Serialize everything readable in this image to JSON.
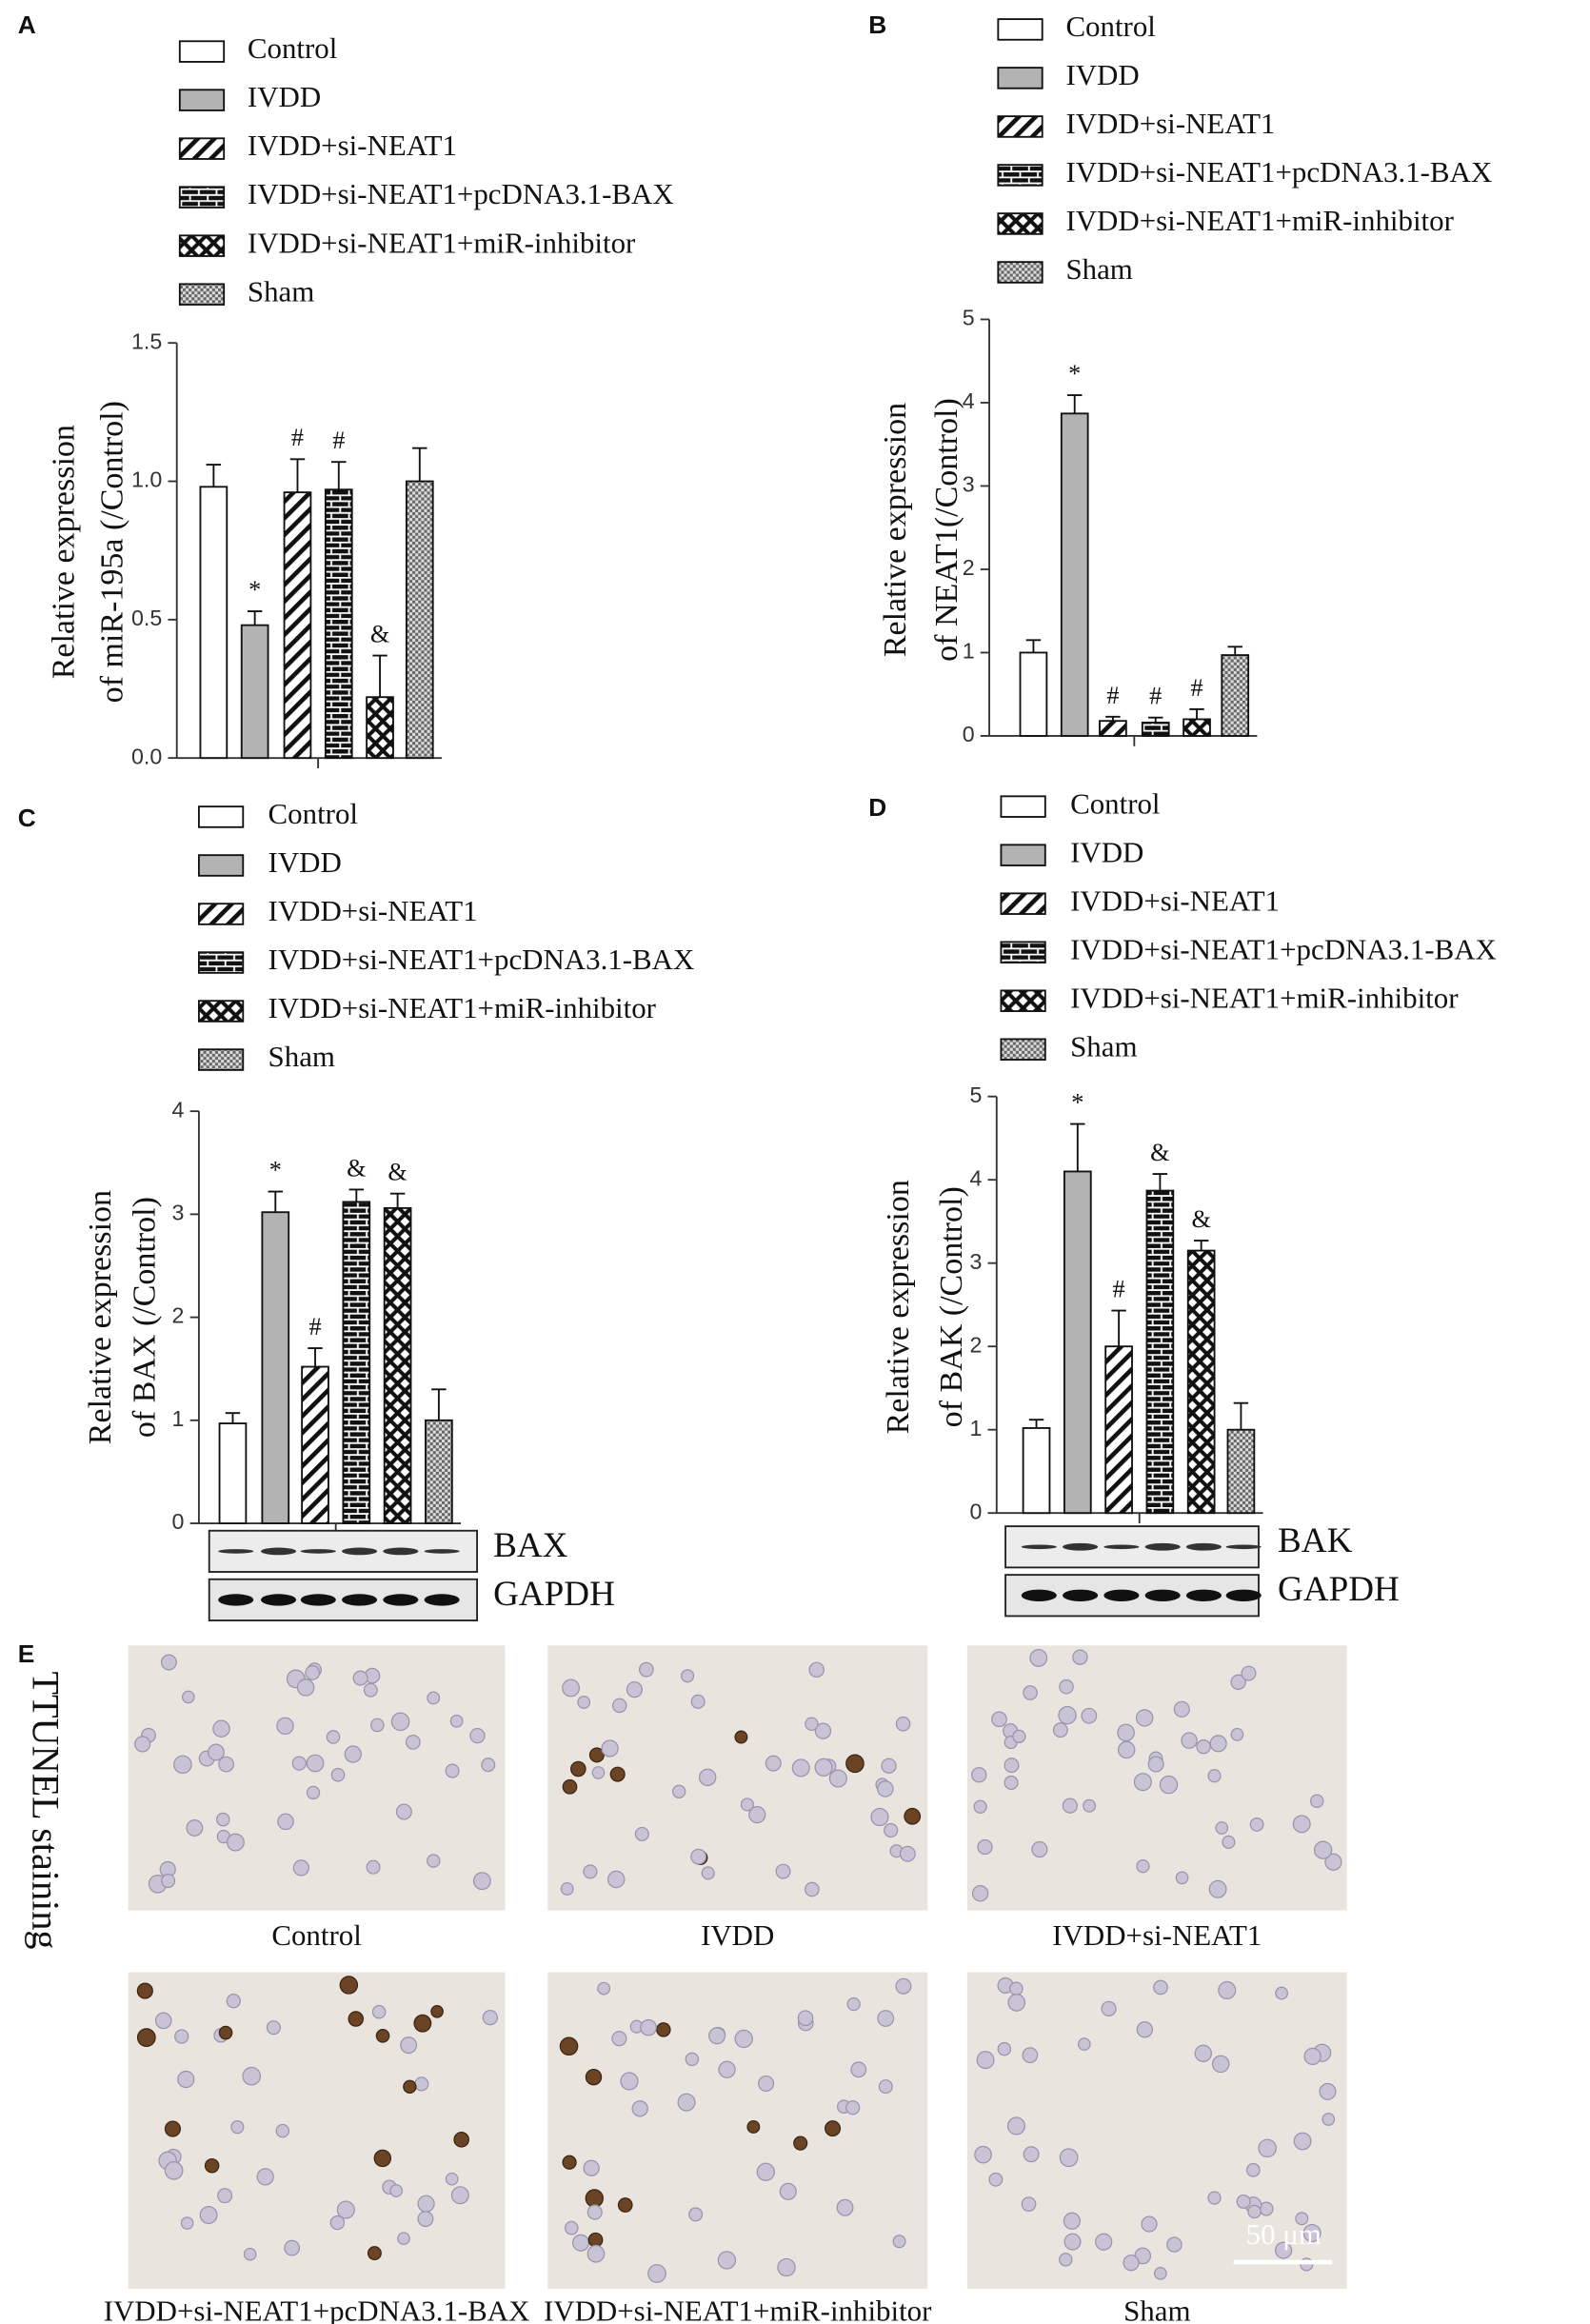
{
  "chart_data": [
    {
      "type": "bar",
      "panel": "A",
      "ylabel": [
        "Relative expression",
        "of  miR-195a (/Control)"
      ],
      "ylim": [
        0,
        1.5
      ],
      "yticks": [
        {
          "value": 0,
          "label": "0.0"
        },
        {
          "value": 0.5,
          "label": "0.5"
        },
        {
          "value": 1,
          "label": "1.0"
        },
        {
          "value": 1.5,
          "label": "1.5"
        }
      ],
      "series": [
        {
          "name": "Control",
          "color": "#ffffff",
          "pattern": "solid",
          "values": [
            0.98
          ],
          "errors": [
            0.08
          ]
        },
        {
          "name": "IVDD",
          "color": "#b3b3b3",
          "pattern": "solid",
          "values": [
            0.48
          ],
          "errors": [
            0.05
          ],
          "annotation": "*"
        },
        {
          "name": "IVDD+si-NEAT1",
          "color": "#111111",
          "pattern": "hatch",
          "values": [
            0.96
          ],
          "errors": [
            0.12
          ],
          "annotation": "#"
        },
        {
          "name": "IVDD+si-NEAT1+pcDNA3.1-BAX",
          "color": "#111111",
          "pattern": "brick",
          "values": [
            0.97
          ],
          "errors": [
            0.1
          ],
          "annotation": "#"
        },
        {
          "name": "IVDD+si-NEAT1+miR-inhibitor",
          "color": "#111111",
          "pattern": "cross",
          "values": [
            0.22
          ],
          "errors": [
            0.15
          ],
          "annotation": "&"
        },
        {
          "name": "Sham",
          "color": "#666666",
          "pattern": "check",
          "values": [
            1.0
          ],
          "errors": [
            0.12
          ]
        }
      ]
    },
    {
      "type": "bar",
      "panel": "B",
      "ylabel": [
        "Relative expression",
        "of  NEAT1(/Control)"
      ],
      "ylim": [
        0,
        5
      ],
      "yticks": [
        0,
        1,
        2,
        3,
        4,
        5
      ],
      "series": [
        {
          "name": "Control",
          "color": "#ffffff",
          "pattern": "solid",
          "values": [
            1.0
          ],
          "errors": [
            0.15
          ]
        },
        {
          "name": "IVDD",
          "color": "#b3b3b3",
          "pattern": "solid",
          "values": [
            3.87
          ],
          "errors": [
            0.22
          ],
          "annotation": "*"
        },
        {
          "name": "IVDD+si-NEAT1",
          "color": "#111111",
          "pattern": "hatch",
          "values": [
            0.18
          ],
          "errors": [
            0.05
          ],
          "annotation": "#"
        },
        {
          "name": "IVDD+si-NEAT1+pcDNA3.1-BAX",
          "color": "#111111",
          "pattern": "brick",
          "values": [
            0.16
          ],
          "errors": [
            0.06
          ],
          "annotation": "#"
        },
        {
          "name": "IVDD+si-NEAT1+miR-inhibitor",
          "color": "#111111",
          "pattern": "cross",
          "values": [
            0.2
          ],
          "errors": [
            0.12
          ],
          "annotation": "#"
        },
        {
          "name": "Sham",
          "color": "#666666",
          "pattern": "check",
          "values": [
            0.97
          ],
          "errors": [
            0.1
          ]
        }
      ]
    },
    {
      "type": "bar",
      "panel": "C",
      "ylabel": [
        "Relative expression",
        "of  BAX (/Control)"
      ],
      "ylim": [
        0,
        4
      ],
      "yticks": [
        0,
        1,
        2,
        3,
        4
      ],
      "blots": [
        "BAX",
        "GAPDH"
      ],
      "series": [
        {
          "name": "Control",
          "color": "#ffffff",
          "pattern": "solid",
          "values": [
            0.97
          ],
          "errors": [
            0.1
          ]
        },
        {
          "name": "IVDD",
          "color": "#b3b3b3",
          "pattern": "solid",
          "values": [
            3.02
          ],
          "errors": [
            0.2
          ],
          "annotation": "*"
        },
        {
          "name": "IVDD+si-NEAT1",
          "color": "#111111",
          "pattern": "hatch",
          "values": [
            1.52
          ],
          "errors": [
            0.18
          ],
          "annotation": "#"
        },
        {
          "name": "IVDD+si-NEAT1+pcDNA3.1-BAX",
          "color": "#111111",
          "pattern": "brick",
          "values": [
            3.12
          ],
          "errors": [
            0.12
          ],
          "annotation": "&"
        },
        {
          "name": "IVDD+si-NEAT1+miR-inhibitor",
          "color": "#111111",
          "pattern": "cross",
          "values": [
            3.06
          ],
          "errors": [
            0.14
          ],
          "annotation": "&"
        },
        {
          "name": "Sham",
          "color": "#666666",
          "pattern": "check",
          "values": [
            1.0
          ],
          "errors": [
            0.3
          ]
        }
      ]
    },
    {
      "type": "bar",
      "panel": "D",
      "ylabel": [
        "Relative expression",
        "of  BAK (/Control)"
      ],
      "ylim": [
        0,
        5
      ],
      "yticks": [
        0,
        1,
        2,
        3,
        4,
        5
      ],
      "blots": [
        "BAK",
        "GAPDH"
      ],
      "series": [
        {
          "name": "Control",
          "color": "#ffffff",
          "pattern": "solid",
          "values": [
            1.02
          ],
          "errors": [
            0.1
          ]
        },
        {
          "name": "IVDD",
          "color": "#b3b3b3",
          "pattern": "solid",
          "values": [
            4.1
          ],
          "errors": [
            0.57
          ],
          "annotation": "*"
        },
        {
          "name": "IVDD+si-NEAT1",
          "color": "#111111",
          "pattern": "hatch",
          "values": [
            2.0
          ],
          "errors": [
            0.43
          ],
          "annotation": "#"
        },
        {
          "name": "IVDD+si-NEAT1+pcDNA3.1-BAX",
          "color": "#111111",
          "pattern": "brick",
          "values": [
            3.87
          ],
          "errors": [
            0.2
          ],
          "annotation": "&"
        },
        {
          "name": "IVDD+si-NEAT1+miR-inhibitor",
          "color": "#111111",
          "pattern": "cross",
          "values": [
            3.15
          ],
          "errors": [
            0.12
          ],
          "annotation": "&"
        },
        {
          "name": "Sham",
          "color": "#666666",
          "pattern": "check",
          "values": [
            1.0
          ],
          "errors": [
            0.32
          ]
        }
      ]
    }
  ],
  "panel_e": {
    "letter": "E",
    "side_label": "TTUNEL staining",
    "captions": [
      "Control",
      "IVDD",
      "IVDD+si-NEAT1",
      "IVDD+si-NEAT1+pcDNA3.1-BAX",
      "IVDD+si-NEAT1+miR-inhibitor",
      "Sham"
    ],
    "scale_bar": "50 μm"
  }
}
